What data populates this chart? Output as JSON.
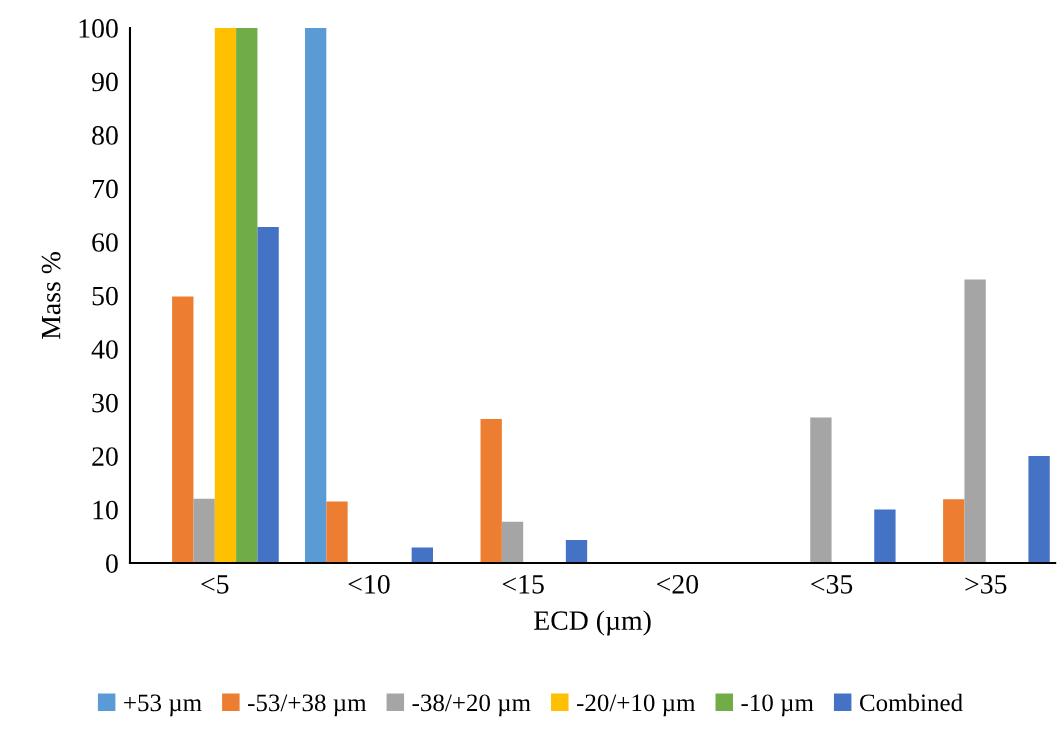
{
  "chart_data": {
    "type": "bar",
    "xlabel": "ECD (µm)",
    "ylabel": "Mass %",
    "categories": [
      "<5",
      "<10",
      "<15",
      "<20",
      "<35",
      ">35"
    ],
    "series": [
      {
        "name": "+53 µm",
        "color": "#5b9bd5",
        "values": [
          0,
          100,
          0,
          0,
          0,
          0
        ]
      },
      {
        "name": "-53/+38 µm",
        "color": "#ed7d31",
        "values": [
          49.8,
          11.5,
          26.9,
          0,
          0,
          11.9
        ]
      },
      {
        "name": "-38/+20 µm",
        "color": "#a5a5a5",
        "values": [
          12,
          0,
          7.7,
          0,
          27.2,
          53
        ]
      },
      {
        "name": "-20/+10 µm",
        "color": "#ffc000",
        "values": [
          100,
          0,
          0,
          0,
          0,
          0
        ]
      },
      {
        "name": "-10 µm",
        "color": "#70ad47",
        "values": [
          100,
          0,
          0,
          0,
          0,
          0
        ]
      },
      {
        "name": "Combined",
        "color": "#4472c4",
        "values": [
          62.8,
          2.9,
          4.3,
          0,
          10,
          20
        ]
      }
    ],
    "ylim": [
      0,
      100
    ],
    "yticks": [
      0,
      10,
      20,
      30,
      40,
      50,
      60,
      70,
      80,
      90,
      100
    ],
    "grid": false,
    "legend": "bottom"
  }
}
